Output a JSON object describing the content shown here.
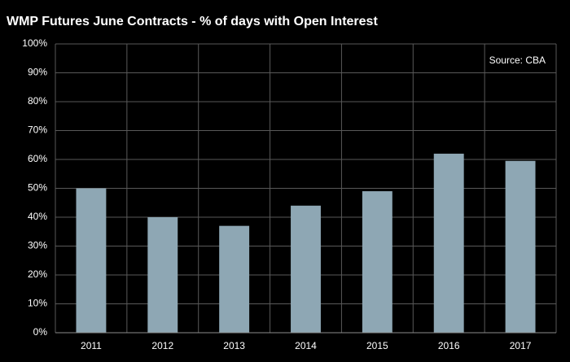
{
  "chart_data": {
    "type": "bar",
    "title": "WMP Futures June Contracts - % of days with Open Interest",
    "annotation": "Source: CBA",
    "categories": [
      "2011",
      "2012",
      "2013",
      "2014",
      "2015",
      "2016",
      "2017"
    ],
    "values": [
      50,
      40,
      37,
      44,
      49,
      62,
      59.5
    ],
    "color": "#8ea7b4",
    "ylim": [
      0,
      100
    ],
    "yticks": [
      {
        "value": 0,
        "label": "0%"
      },
      {
        "value": 10,
        "label": "10%"
      },
      {
        "value": 20,
        "label": "20%"
      },
      {
        "value": 30,
        "label": "30%"
      },
      {
        "value": 40,
        "label": "40%"
      },
      {
        "value": 50,
        "label": "50%"
      },
      {
        "value": 60,
        "label": "60%"
      },
      {
        "value": 70,
        "label": "70%"
      },
      {
        "value": 80,
        "label": "80%"
      },
      {
        "value": 90,
        "label": "90%"
      },
      {
        "value": 100,
        "label": "100%"
      }
    ],
    "grid": true
  }
}
